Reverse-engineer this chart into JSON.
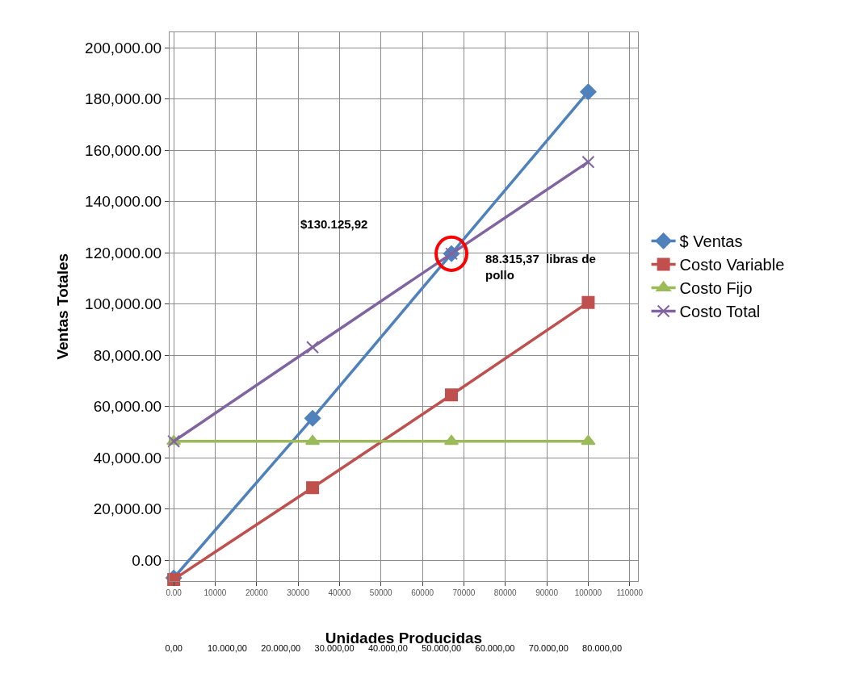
{
  "chart_data": {
    "type": "line",
    "xlabel": "Unidades Producidas",
    "ylabel": "Ventas Totales",
    "x": [
      0,
      33500,
      67000,
      100000
    ],
    "series": [
      {
        "name": "$ Ventas",
        "color": "#4f81bd",
        "marker": "diamond",
        "values": [
          -6900,
          55400,
          119600,
          182800
        ]
      },
      {
        "name": "Costo Variable",
        "color": "#c0504d",
        "marker": "square",
        "values": [
          -7500,
          28300,
          64500,
          100600
        ]
      },
      {
        "name": "Costo Fijo",
        "color": "#9bbb59",
        "marker": "triangle",
        "values": [
          46400,
          46400,
          46400,
          46400
        ]
      },
      {
        "name": "Costo Total",
        "color": "#8064a2",
        "marker": "cross",
        "values": [
          46400,
          83100,
          119600,
          155400
        ]
      }
    ],
    "xlim": [
      -1000,
      112000
    ],
    "xticks": [
      {
        "value": 0,
        "label": "0.00"
      },
      10000,
      20000,
      30000,
      40000,
      50000,
      60000,
      70000,
      80000,
      90000,
      100000,
      110000
    ],
    "x2lim": [
      -780,
      86700
    ],
    "x2ticks": [
      {
        "value": 0,
        "label": "0,00"
      },
      {
        "value": 10000,
        "label": "10.000,00"
      },
      {
        "value": 20000,
        "label": "20.000,00"
      },
      {
        "value": 30000,
        "label": "30.000,00"
      },
      {
        "value": 40000,
        "label": "40.000,00"
      },
      {
        "value": 50000,
        "label": "50.000,00"
      },
      {
        "value": 60000,
        "label": "60.000,00"
      },
      {
        "value": 70000,
        "label": "70.000,00"
      },
      {
        "value": 80000,
        "label": "80.000,00"
      }
    ],
    "ylim": [
      -8000,
      206000
    ],
    "yticks": [
      {
        "value": 0,
        "label": "0.00"
      },
      {
        "value": 20000,
        "label": "20,000.00"
      },
      {
        "value": 40000,
        "label": "40,000.00"
      },
      {
        "value": 60000,
        "label": "60,000.00"
      },
      {
        "value": 80000,
        "label": "80,000.00"
      },
      {
        "value": 100000,
        "label": "100,000.00"
      },
      {
        "value": 120000,
        "label": "120,000.00"
      },
      {
        "value": 140000,
        "label": "140,000.00"
      },
      {
        "value": 160000,
        "label": "160,000.00"
      },
      {
        "value": 180000,
        "label": "180,000.00"
      },
      {
        "value": 200000,
        "label": "200,000.00"
      }
    ],
    "annotations": [
      "$130.125,92",
      "88.315,37  libras de pollo"
    ],
    "grid": true,
    "legend": "right"
  }
}
